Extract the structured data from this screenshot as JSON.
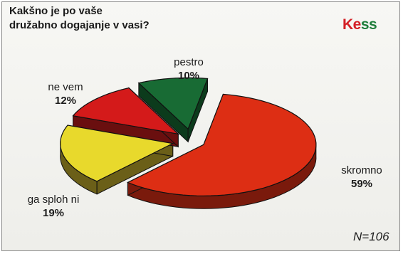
{
  "chart_data": {
    "type": "pie",
    "title": "Kakšno je po vaše družabno dogajanje v vasi?",
    "title_lines": [
      "Kakšno je po vaše",
      "družabno dogajanje v vasi?"
    ],
    "slices": [
      {
        "name": "skromno",
        "value": 59,
        "label": "59%",
        "color": "#dd2e14",
        "side_color": "#7a1a0c"
      },
      {
        "name": "ga sploh ni",
        "value": 19,
        "label": "19%",
        "color": "#e8d92c",
        "side_color": "#6b5f18"
      },
      {
        "name": "ne vem",
        "value": 12,
        "label": "12%",
        "color": "#d41a1a",
        "side_color": "#6a0f0f"
      },
      {
        "name": "pestro",
        "value": 10,
        "label": "10%",
        "color": "#186b34",
        "side_color": "#0c3b1c"
      }
    ],
    "note": "N=106"
  },
  "logo": {
    "text_k": "K",
    "text_e": "e",
    "text_ss": "ss"
  }
}
